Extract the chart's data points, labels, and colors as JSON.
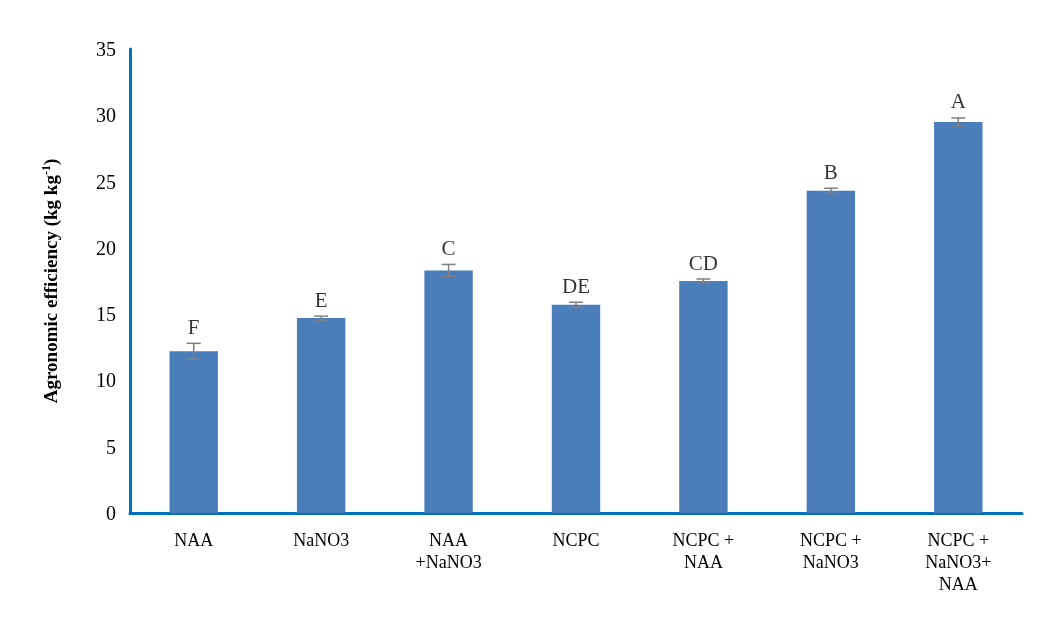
{
  "chart_data": {
    "type": "bar",
    "ylabel": "Agronomic efficiency (kg kg$^{-1}$)",
    "categories": [
      "NAA",
      "NaNO3",
      "NAA\n+NaNO3",
      "NCPC",
      "NCPC +\nNAA",
      "NCPC +\nNaNO3",
      "NCPC +\nNaNO3+\nNAA"
    ],
    "values": [
      12.2,
      14.7,
      18.3,
      15.7,
      17.5,
      24.3,
      29.5
    ],
    "errors": [
      0.6,
      0.15,
      0.45,
      0.2,
      0.15,
      0.2,
      0.3
    ],
    "color": "#4a7ebb",
    "ylim": [
      0,
      35
    ],
    "yticks": [
      0,
      5,
      10,
      15,
      20,
      25,
      30,
      35
    ],
    "grid": false,
    "annotations": [
      "F",
      "E",
      "C",
      "DE",
      "CD",
      "B",
      "A"
    ]
  }
}
